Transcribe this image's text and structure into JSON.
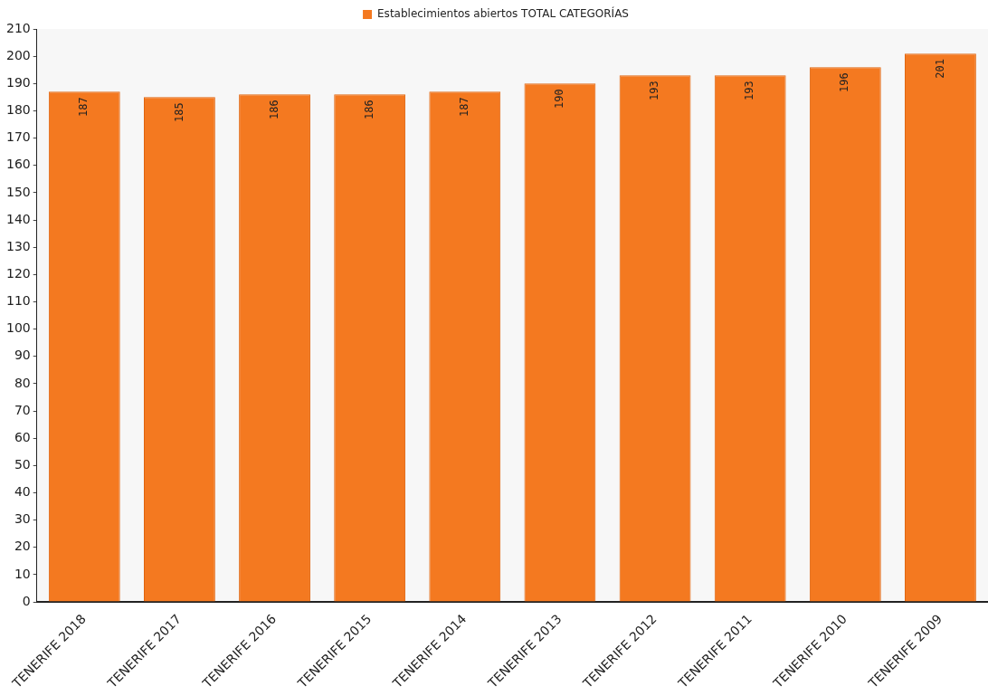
{
  "chart_data": {
    "type": "bar",
    "categories": [
      "TENERIFE 2018",
      "TENERIFE 2017",
      "TENERIFE 2016",
      "TENERIFE 2015",
      "TENERIFE 2014",
      "TENERIFE 2013",
      "TENERIFE 2012",
      "TENERIFE 2011",
      "TENERIFE 2010",
      "TENERIFE 2009"
    ],
    "series": [
      {
        "name": "Establecimientos abiertos TOTAL CATEGORÍAS",
        "color": "#f47920",
        "values": [
          187,
          185,
          186,
          186,
          187,
          190,
          193,
          193,
          196,
          201
        ]
      }
    ],
    "ylim": [
      0,
      210
    ],
    "yticks": [
      0,
      10,
      20,
      30,
      40,
      50,
      60,
      70,
      80,
      90,
      100,
      110,
      120,
      130,
      140,
      150,
      160,
      170,
      180,
      190,
      200,
      210
    ],
    "data_labels": true,
    "grid": false,
    "legend": "top"
  }
}
